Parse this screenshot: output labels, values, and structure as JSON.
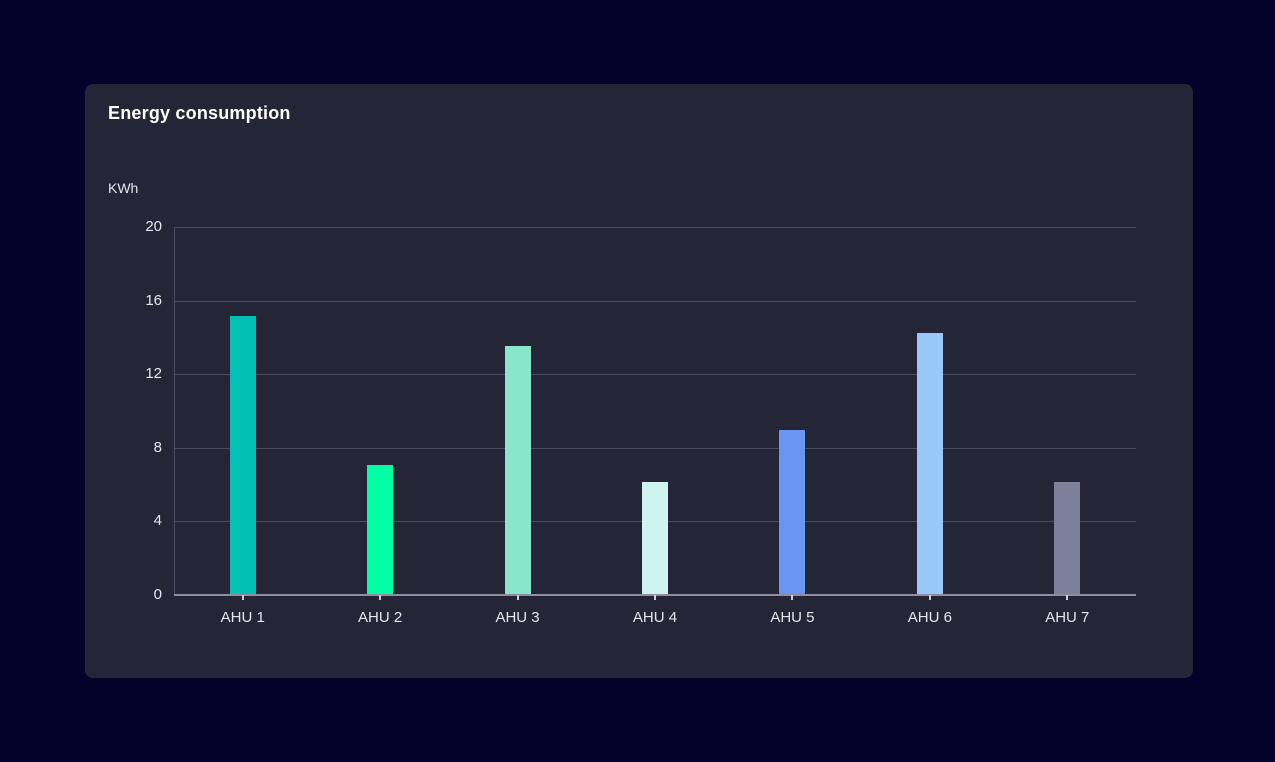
{
  "card": {
    "title": "Energy consumption"
  },
  "chart_data": {
    "type": "bar",
    "title": "Energy consumption",
    "xlabel": "",
    "ylabel": "KWh",
    "categories": [
      "AHU 1",
      "AHU 2",
      "AHU 3",
      "AHU 4",
      "AHU 5",
      "AHU 6",
      "AHU 7"
    ],
    "values": [
      15.1,
      7,
      13.5,
      6.1,
      8.9,
      14.2,
      6.1
    ],
    "bar_colors": [
      "#00C1B4",
      "#00FFA3",
      "#88E6C9",
      "#CFF4F0",
      "#6A96F2",
      "#9AC7FA",
      "#7C8199"
    ],
    "ylim": [
      0,
      20
    ],
    "yticks": [
      0,
      4,
      8,
      12,
      16,
      20
    ],
    "grid": "horizontal",
    "legend": "none"
  },
  "colors": {
    "page_bg": "#02022B",
    "card_bg": "#252538",
    "gridline": "#4B4B63",
    "axis_line": "#8E8E9E",
    "tick_color": "#CFCFDA",
    "text_primary": "#FFFFFF",
    "text_secondary": "#E6E6EC"
  }
}
